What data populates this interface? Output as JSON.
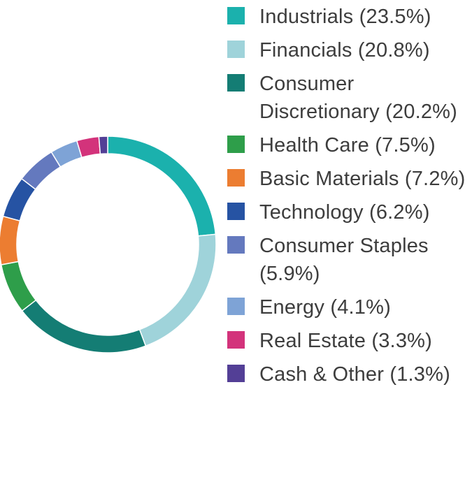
{
  "chart_data": {
    "type": "pie",
    "donut": true,
    "legend_position": "right",
    "slices": [
      {
        "label": "Industrials (23.5%)",
        "value": 23.5,
        "color": "#1bb1ad"
      },
      {
        "label": "Financials (20.8%)",
        "value": 20.8,
        "color": "#9fd3da"
      },
      {
        "label": "Consumer Discretionary (20.2%)",
        "value": 20.2,
        "color": "#147d74"
      },
      {
        "label": "Health Care (7.5%)",
        "value": 7.5,
        "color": "#2e9e4a"
      },
      {
        "label": "Basic Materials (7.2%)",
        "value": 7.2,
        "color": "#ec7d31"
      },
      {
        "label": "Technology (6.2%)",
        "value": 6.2,
        "color": "#2653a3"
      },
      {
        "label": "Consumer Staples (5.9%)",
        "value": 5.9,
        "color": "#6479be"
      },
      {
        "label": "Energy (4.1%)",
        "value": 4.1,
        "color": "#7ea3d6"
      },
      {
        "label": "Real Estate (3.3%)",
        "value": 3.3,
        "color": "#d3337b"
      },
      {
        "label": "Cash & Other (1.3%)",
        "value": 1.3,
        "color": "#533f96"
      }
    ]
  }
}
